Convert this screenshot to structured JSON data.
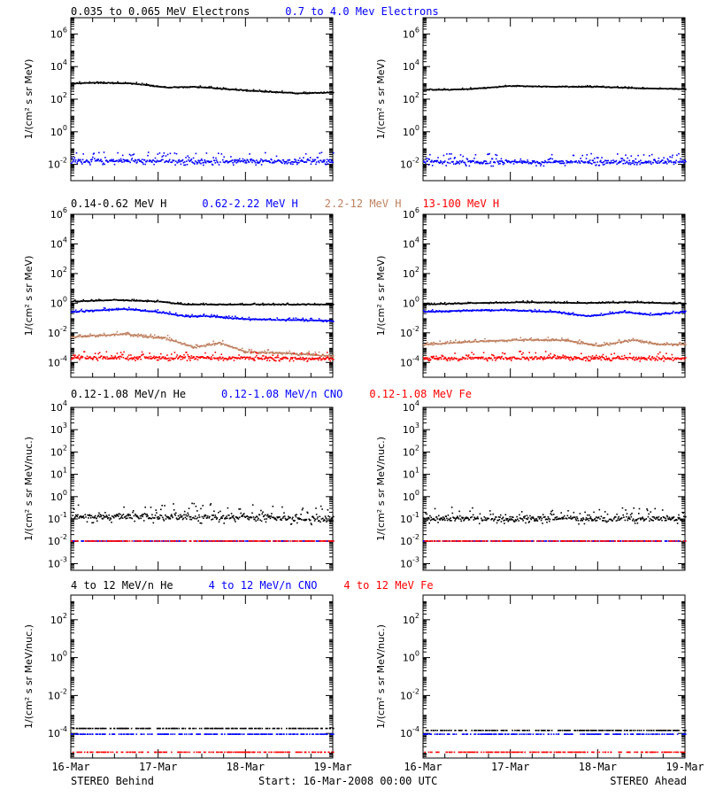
{
  "footer": {
    "left": "STEREO Behind",
    "center": "Start: 16-Mar-2008 00:00 UTC",
    "right": "STEREO Ahead"
  },
  "colors": {
    "black": "#000000",
    "blue": "#0000ff",
    "tan": "#c08060",
    "red": "#ff0000"
  },
  "chart_data": [
    {
      "type": "scatter",
      "row": 1,
      "title_items": [
        {
          "text": "0.035 to 0.065 MeV Electrons",
          "color": "#000000"
        },
        {
          "text": "0.7 to 4.0 Mev Electrons",
          "color": "#0000ff"
        }
      ],
      "ylabel": "1/(cm² s sr MeV)",
      "yscale": "log",
      "ylim_exp": [
        -3,
        7
      ],
      "ytick_exps": [
        -2,
        0,
        2,
        4,
        6
      ],
      "xticks": [
        "16-Mar",
        "17-Mar",
        "18-Mar",
        "19-Mar"
      ],
      "xlim_days": [
        0,
        3
      ],
      "panels": [
        {
          "side": "STEREO Behind",
          "series": [
            {
              "name": "0.035 to 0.065 MeV Electrons",
              "color": "#000000",
              "x": [
                0,
                0.3,
                0.7,
                1.1,
                1.4,
                1.8,
                2.2,
                2.6,
                3.0
              ],
              "log10": [
                2.95,
                3.0,
                2.95,
                2.7,
                2.75,
                2.6,
                2.45,
                2.35,
                2.4
              ],
              "scatter": 0.05
            },
            {
              "name": "0.7 to 4.0 Mev Electrons",
              "color": "#0000ff",
              "x": [
                0,
                1.0,
                2.0,
                3.0
              ],
              "log10": [
                -1.8,
                -1.8,
                -1.85,
                -1.8
              ],
              "scatter": 0.3
            }
          ]
        },
        {
          "side": "STEREO Ahead",
          "series": [
            {
              "name": "0.035 to 0.065 MeV Electrons",
              "color": "#000000",
              "x": [
                0,
                0.5,
                1.0,
                1.5,
                2.0,
                2.5,
                3.0
              ],
              "log10": [
                2.55,
                2.6,
                2.8,
                2.75,
                2.75,
                2.65,
                2.6
              ],
              "scatter": 0.04
            },
            {
              "name": "0.7 to 4.0 Mev Electrons",
              "color": "#0000ff",
              "x": [
                0,
                1.0,
                2.0,
                3.0
              ],
              "log10": [
                -1.85,
                -1.9,
                -1.85,
                -1.85
              ],
              "scatter": 0.3
            }
          ]
        }
      ]
    },
    {
      "type": "scatter",
      "row": 2,
      "title_items": [
        {
          "text": "0.14-0.62 MeV H",
          "color": "#000000"
        },
        {
          "text": "0.62-2.22 MeV H",
          "color": "#0000ff"
        },
        {
          "text": "2.2-12 MeV H",
          "color": "#c08060"
        },
        {
          "text": "13-100 MeV H",
          "color": "#ff0000"
        }
      ],
      "ylabel": "1/(cm² s sr MeV)",
      "yscale": "log",
      "ylim_exp": [
        -5,
        6
      ],
      "ytick_exps": [
        -4,
        -2,
        0,
        2,
        4,
        6
      ],
      "xticks": [
        "16-Mar",
        "17-Mar",
        "18-Mar",
        "19-Mar"
      ],
      "xlim_days": [
        0,
        3
      ],
      "panels": [
        {
          "side": "STEREO Behind",
          "series": [
            {
              "name": "0.14-0.62 MeV H",
              "color": "#000000",
              "x": [
                0,
                0.5,
                1.0,
                1.3,
                2.0,
                3.0
              ],
              "log10": [
                0.1,
                0.2,
                0.1,
                -0.1,
                -0.1,
                -0.1
              ],
              "scatter": 0.05
            },
            {
              "name": "0.62-2.22 MeV H",
              "color": "#0000ff",
              "x": [
                0,
                0.6,
                1.0,
                1.3,
                1.6,
                2.0,
                3.0
              ],
              "log10": [
                -0.6,
                -0.4,
                -0.6,
                -0.9,
                -0.9,
                -1.1,
                -1.2
              ],
              "scatter": 0.08
            },
            {
              "name": "2.2-12 MeV H",
              "color": "#c08060",
              "x": [
                0,
                0.6,
                1.1,
                1.4,
                1.7,
                2.0,
                2.5,
                3.0
              ],
              "log10": [
                -2.3,
                -2.1,
                -2.4,
                -3.0,
                -2.7,
                -3.3,
                -3.4,
                -3.6
              ],
              "scatter": 0.12
            },
            {
              "name": "13-100 MeV H",
              "color": "#ff0000",
              "x": [
                0,
                1.5,
                3.0
              ],
              "log10": [
                -3.7,
                -3.7,
                -3.75
              ],
              "scatter": 0.25
            }
          ]
        },
        {
          "side": "STEREO Ahead",
          "series": [
            {
              "name": "0.14-0.62 MeV H",
              "color": "#000000",
              "x": [
                0,
                0.6,
                1.2,
                1.8,
                2.4,
                3.0
              ],
              "log10": [
                -0.1,
                0.0,
                0.05,
                0.0,
                0.05,
                -0.05
              ],
              "scatter": 0.05
            },
            {
              "name": "0.62-2.22 MeV H",
              "color": "#0000ff",
              "x": [
                0,
                0.6,
                1.0,
                1.5,
                1.9,
                2.3,
                2.6,
                3.0
              ],
              "log10": [
                -0.6,
                -0.5,
                -0.5,
                -0.6,
                -0.9,
                -0.6,
                -0.8,
                -0.6
              ],
              "scatter": 0.07
            },
            {
              "name": "2.2-12 MeV H",
              "color": "#c08060",
              "x": [
                0,
                0.6,
                1.1,
                1.6,
                2.0,
                2.4,
                2.7,
                3.0
              ],
              "log10": [
                -2.8,
                -2.6,
                -2.5,
                -2.5,
                -2.9,
                -2.5,
                -2.8,
                -2.8
              ],
              "scatter": 0.1
            },
            {
              "name": "13-100 MeV H",
              "color": "#ff0000",
              "x": [
                0,
                1.5,
                3.0
              ],
              "log10": [
                -3.75,
                -3.7,
                -3.75
              ],
              "scatter": 0.25
            }
          ]
        }
      ]
    },
    {
      "type": "scatter",
      "row": 3,
      "title_items": [
        {
          "text": "0.12-1.08 MeV/n He",
          "color": "#000000"
        },
        {
          "text": "0.12-1.08 MeV/n CNO",
          "color": "#0000ff"
        },
        {
          "text": "0.12-1.08 MeV Fe",
          "color": "#ff0000"
        }
      ],
      "ylabel": "1/(cm² s sr MeV/nuc.)",
      "yscale": "log",
      "ylim_exp": [
        -3.3,
        4
      ],
      "ytick_exps": [
        -3,
        -2,
        -1,
        0,
        1,
        2,
        3,
        4
      ],
      "xticks": [
        "16-Mar",
        "17-Mar",
        "18-Mar",
        "19-Mar"
      ],
      "xlim_days": [
        0,
        3
      ],
      "panels": [
        {
          "side": "STEREO Behind",
          "series": [
            {
              "name": "0.12-1.08 MeV/n He",
              "color": "#000000",
              "x": [
                0,
                0.8,
                3.0
              ],
              "log10": [
                -0.9,
                -0.9,
                -1.0
              ],
              "scatter": 0.35
            },
            {
              "name": "0.12-1.08 MeV/n CNO",
              "color": "#0000ff",
              "x": [
                0,
                3.0
              ],
              "log10": [
                -2.0,
                -2.0
              ],
              "scatter": 0.0
            },
            {
              "name": "0.12-1.08 MeV Fe",
              "color": "#ff0000",
              "x": [
                0,
                3.0
              ],
              "log10": [
                -2.0,
                -2.0
              ],
              "scatter": 0.0
            }
          ]
        },
        {
          "side": "STEREO Ahead",
          "series": [
            {
              "name": "0.12-1.08 MeV/n He",
              "color": "#000000",
              "x": [
                0,
                3.0
              ],
              "log10": [
                -1.0,
                -1.0
              ],
              "scatter": 0.3
            },
            {
              "name": "0.12-1.08 MeV/n CNO",
              "color": "#0000ff",
              "x": [
                0,
                3.0
              ],
              "log10": [
                -2.0,
                -2.0
              ],
              "scatter": 0.0
            },
            {
              "name": "0.12-1.08 MeV Fe",
              "color": "#ff0000",
              "x": [
                0,
                3.0
              ],
              "log10": [
                -2.0,
                -2.0
              ],
              "scatter": 0.0
            }
          ]
        }
      ]
    },
    {
      "type": "scatter",
      "row": 4,
      "title_items": [
        {
          "text": "4 to 12 MeV/n He",
          "color": "#000000"
        },
        {
          "text": "4 to 12 MeV/n CNO",
          "color": "#0000ff"
        },
        {
          "text": "4 to 12 MeV Fe",
          "color": "#ff0000"
        }
      ],
      "ylabel": "1/(cm² s sr MeV/nuc.)",
      "yscale": "log",
      "ylim_exp": [
        -5.3,
        3.3
      ],
      "ytick_exps": [
        -4,
        -2,
        0,
        2
      ],
      "xticks": [
        "16-Mar",
        "17-Mar",
        "18-Mar",
        "19-Mar"
      ],
      "xlim_days": [
        0,
        3
      ],
      "panels": [
        {
          "side": "STEREO Behind",
          "series": [
            {
              "name": "4 to 12 MeV/n He",
              "color": "#000000",
              "x": [
                0,
                3.0
              ],
              "log10": [
                -3.75,
                -3.75
              ],
              "scatter": 0.0
            },
            {
              "name": "4 to 12 MeV/n CNO",
              "color": "#0000ff",
              "x": [
                0,
                3.0
              ],
              "log10": [
                -4.05,
                -4.05
              ],
              "scatter": 0.0
            },
            {
              "name": "4 to 12 MeV Fe",
              "color": "#ff0000",
              "x": [
                0,
                3.0
              ],
              "log10": [
                -5.0,
                -5.0
              ],
              "scatter": 0.0
            }
          ]
        },
        {
          "side": "STEREO Ahead",
          "series": [
            {
              "name": "4 to 12 MeV/n He",
              "color": "#000000",
              "x": [
                0,
                3.0
              ],
              "log10": [
                -3.85,
                -3.85
              ],
              "scatter": 0.0
            },
            {
              "name": "4 to 12 MeV/n CNO",
              "color": "#0000ff",
              "x": [
                0,
                3.0
              ],
              "log10": [
                -4.05,
                -4.05
              ],
              "scatter": 0.0
            },
            {
              "name": "4 to 12 MeV Fe",
              "color": "#ff0000",
              "x": [
                0,
                3.0
              ],
              "log10": [
                -5.0,
                -5.0
              ],
              "scatter": 0.0
            }
          ]
        }
      ]
    }
  ]
}
